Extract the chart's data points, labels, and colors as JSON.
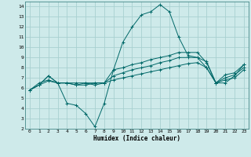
{
  "xlabel": "Humidex (Indice chaleur)",
  "bg_color": "#ceeaea",
  "grid_color": "#a8d0d0",
  "line_color": "#006868",
  "xlim": [
    -0.5,
    23.5
  ],
  "ylim": [
    2,
    14.5
  ],
  "xticks": [
    0,
    1,
    2,
    3,
    4,
    5,
    6,
    7,
    8,
    9,
    10,
    11,
    12,
    13,
    14,
    15,
    16,
    17,
    18,
    19,
    20,
    21,
    22,
    23
  ],
  "yticks": [
    2,
    3,
    4,
    5,
    6,
    7,
    8,
    9,
    10,
    11,
    12,
    13,
    14
  ],
  "curves": [
    [
      5.8,
      6.3,
      6.7,
      6.5,
      4.5,
      4.3,
      3.5,
      2.2,
      4.5,
      7.8,
      10.5,
      12.0,
      13.2,
      13.5,
      14.2,
      13.5,
      11.0,
      9.2,
      9.0,
      8.6,
      6.5,
      6.5,
      7.2,
      8.3
    ],
    [
      5.8,
      6.3,
      7.2,
      6.5,
      6.5,
      6.3,
      6.5,
      6.3,
      6.5,
      7.8,
      8.0,
      8.3,
      8.5,
      8.8,
      9.0,
      9.2,
      9.5,
      9.5,
      9.5,
      8.5,
      6.5,
      7.3,
      7.5,
      8.3
    ],
    [
      5.8,
      6.3,
      7.2,
      6.5,
      6.5,
      6.3,
      6.3,
      6.5,
      6.5,
      7.2,
      7.5,
      7.8,
      8.0,
      8.2,
      8.5,
      8.7,
      9.0,
      9.0,
      9.0,
      8.0,
      6.5,
      7.0,
      7.3,
      8.0
    ],
    [
      5.8,
      6.5,
      6.8,
      6.5,
      6.5,
      6.5,
      6.5,
      6.5,
      6.5,
      6.8,
      7.0,
      7.2,
      7.4,
      7.6,
      7.8,
      8.0,
      8.2,
      8.4,
      8.5,
      8.0,
      6.5,
      6.8,
      7.0,
      7.8
    ]
  ]
}
